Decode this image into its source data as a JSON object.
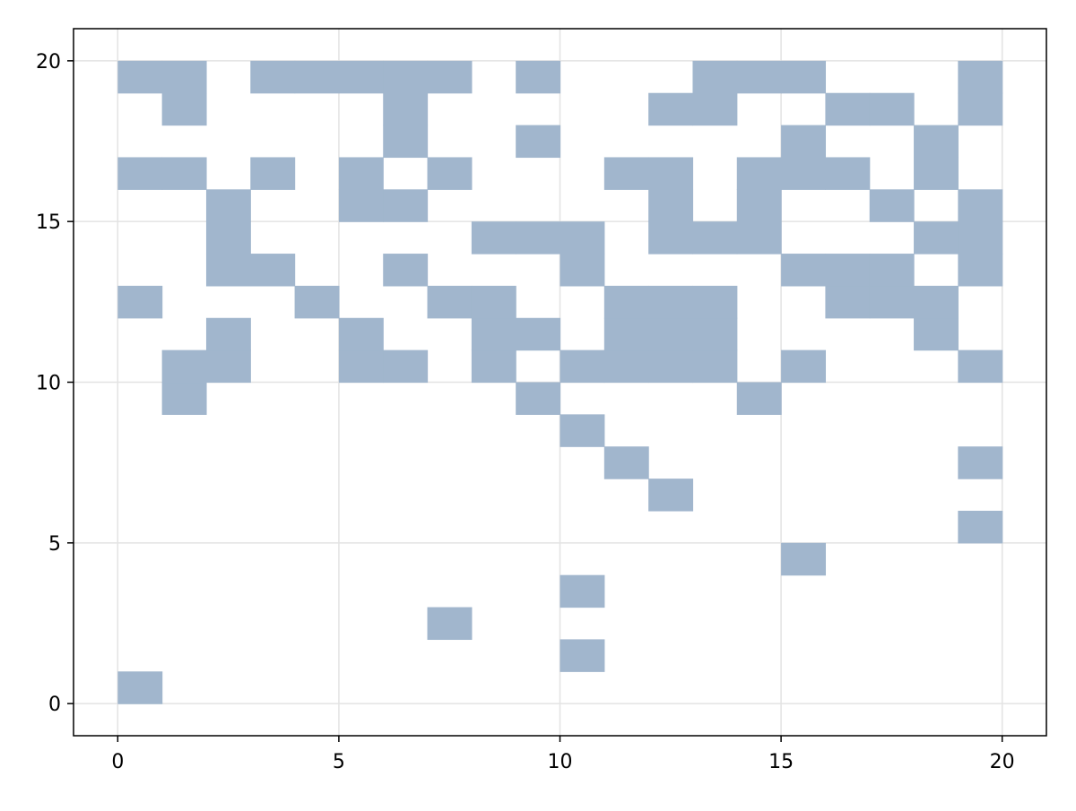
{
  "chart_data": {
    "type": "heatmap",
    "title": "",
    "xlabel": "",
    "ylabel": "",
    "xlim": [
      -1,
      21
    ],
    "ylim": [
      -1,
      21
    ],
    "xticks": [
      0,
      5,
      10,
      15,
      20
    ],
    "yticks": [
      0,
      5,
      10,
      15,
      20
    ],
    "grid": true,
    "fill_color": "#a1b6cd",
    "grid_color": "#e3e3e3",
    "cells": [
      [
        0,
        0
      ],
      [
        10,
        1
      ],
      [
        7,
        2
      ],
      [
        10,
        3
      ],
      [
        15,
        4
      ],
      [
        19,
        5
      ],
      [
        12,
        6
      ],
      [
        11,
        7
      ],
      [
        19,
        7
      ],
      [
        10,
        8
      ],
      [
        1,
        9
      ],
      [
        9,
        9
      ],
      [
        14,
        9
      ],
      [
        1,
        10
      ],
      [
        2,
        10
      ],
      [
        5,
        10
      ],
      [
        6,
        10
      ],
      [
        8,
        10
      ],
      [
        10,
        10
      ],
      [
        11,
        10
      ],
      [
        12,
        10
      ],
      [
        13,
        10
      ],
      [
        15,
        10
      ],
      [
        19,
        10
      ],
      [
        2,
        11
      ],
      [
        5,
        11
      ],
      [
        8,
        11
      ],
      [
        9,
        11
      ],
      [
        11,
        11
      ],
      [
        12,
        11
      ],
      [
        13,
        11
      ],
      [
        18,
        11
      ],
      [
        0,
        12
      ],
      [
        4,
        12
      ],
      [
        7,
        12
      ],
      [
        8,
        12
      ],
      [
        11,
        12
      ],
      [
        12,
        12
      ],
      [
        13,
        12
      ],
      [
        16,
        12
      ],
      [
        17,
        12
      ],
      [
        18,
        12
      ],
      [
        2,
        13
      ],
      [
        3,
        13
      ],
      [
        6,
        13
      ],
      [
        10,
        13
      ],
      [
        15,
        13
      ],
      [
        16,
        13
      ],
      [
        17,
        13
      ],
      [
        19,
        13
      ],
      [
        8,
        14
      ],
      [
        9,
        14
      ],
      [
        10,
        14
      ],
      [
        12,
        14
      ],
      [
        13,
        14
      ],
      [
        14,
        14
      ],
      [
        18,
        14
      ],
      [
        19,
        14
      ],
      [
        2,
        14
      ],
      [
        2,
        15
      ],
      [
        5,
        15
      ],
      [
        6,
        15
      ],
      [
        12,
        15
      ],
      [
        14,
        15
      ],
      [
        17,
        15
      ],
      [
        19,
        15
      ],
      [
        0,
        16
      ],
      [
        1,
        16
      ],
      [
        3,
        16
      ],
      [
        5,
        16
      ],
      [
        7,
        16
      ],
      [
        11,
        16
      ],
      [
        12,
        16
      ],
      [
        14,
        16
      ],
      [
        15,
        16
      ],
      [
        16,
        16
      ],
      [
        18,
        16
      ],
      [
        6,
        17
      ],
      [
        9,
        17
      ],
      [
        15,
        17
      ],
      [
        18,
        17
      ],
      [
        1,
        18
      ],
      [
        6,
        18
      ],
      [
        12,
        18
      ],
      [
        13,
        18
      ],
      [
        16,
        18
      ],
      [
        17,
        18
      ],
      [
        19,
        18
      ],
      [
        0,
        19
      ],
      [
        1,
        19
      ],
      [
        3,
        19
      ],
      [
        4,
        19
      ],
      [
        5,
        19
      ],
      [
        6,
        19
      ],
      [
        7,
        19
      ],
      [
        9,
        19
      ],
      [
        13,
        19
      ],
      [
        14,
        19
      ],
      [
        15,
        19
      ],
      [
        19,
        19
      ]
    ]
  }
}
